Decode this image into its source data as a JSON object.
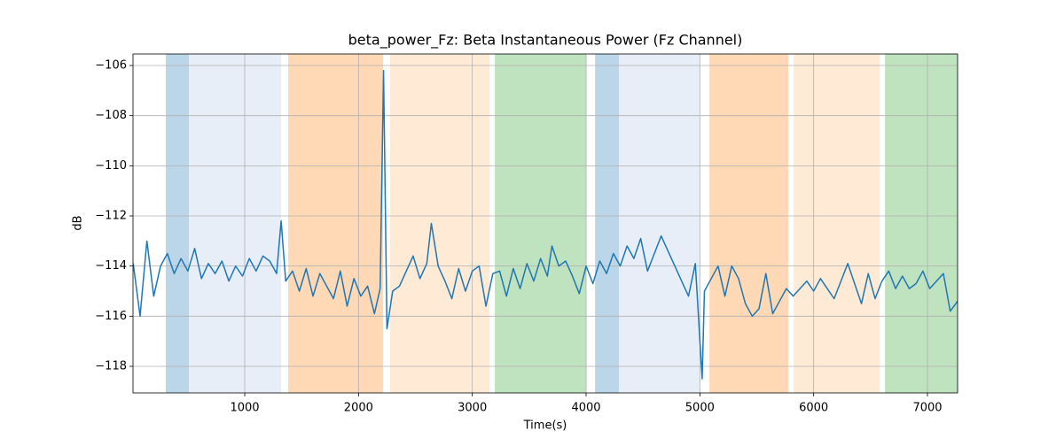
{
  "chart_data": {
    "type": "line",
    "title": "beta_power_Fz: Beta Instantaneous Power (Fz Channel)",
    "xlabel": "Time(s)",
    "ylabel": "dB",
    "color": "#1f77b4",
    "grid": true,
    "xlim": [
      18,
      7265
    ],
    "ylim": [
      -119.06,
      -105.54
    ],
    "xticks": [
      1000,
      2000,
      3000,
      4000,
      5000,
      6000,
      7000
    ],
    "yticks": [
      {
        "value": -118,
        "label": "−118"
      },
      {
        "value": -116,
        "label": "−116"
      },
      {
        "value": -114,
        "label": "−114"
      },
      {
        "value": -112,
        "label": "−112"
      },
      {
        "value": -110,
        "label": "−110"
      },
      {
        "value": -108,
        "label": "−108"
      },
      {
        "value": -106,
        "label": "−106"
      }
    ],
    "span_alpha": 0.3,
    "spans": [
      {
        "start": 306,
        "end": 509,
        "color": "#1f77b4"
      },
      {
        "start": 509,
        "end": 1320,
        "color": "#aec7e8"
      },
      {
        "start": 1382,
        "end": 2216,
        "color": "#ff7f0e"
      },
      {
        "start": 2278,
        "end": 3151,
        "color": "#ffbb78"
      },
      {
        "start": 3198,
        "end": 4001,
        "color": "#2ca02c"
      },
      {
        "start": 4079,
        "end": 4289,
        "color": "#1f77b4"
      },
      {
        "start": 4289,
        "end": 4999,
        "color": "#aec7e8"
      },
      {
        "start": 5084,
        "end": 5778,
        "color": "#ff7f0e"
      },
      {
        "start": 5825,
        "end": 6581,
        "color": "#ffbb78"
      },
      {
        "start": 6627,
        "end": 7265,
        "color": "#2ca02c"
      }
    ],
    "x": [
      20,
      80,
      140,
      200,
      260,
      320,
      380,
      440,
      500,
      560,
      620,
      680,
      740,
      800,
      860,
      920,
      980,
      1040,
      1100,
      1160,
      1220,
      1280,
      1320,
      1360,
      1420,
      1480,
      1540,
      1600,
      1660,
      1720,
      1780,
      1840,
      1900,
      1960,
      2020,
      2080,
      2140,
      2190,
      2220,
      2250,
      2300,
      2360,
      2420,
      2480,
      2540,
      2600,
      2640,
      2700,
      2760,
      2820,
      2880,
      2940,
      3000,
      3060,
      3120,
      3180,
      3240,
      3300,
      3360,
      3420,
      3480,
      3540,
      3600,
      3660,
      3700,
      3760,
      3820,
      3880,
      3940,
      4000,
      4060,
      4120,
      4180,
      4240,
      4300,
      4360,
      4420,
      4480,
      4540,
      4600,
      4660,
      4720,
      4780,
      4840,
      4900,
      4960,
      5020,
      5040,
      5100,
      5160,
      5220,
      5280,
      5340,
      5400,
      5460,
      5520,
      5580,
      5640,
      5700,
      5760,
      5820,
      5880,
      5940,
      6000,
      6060,
      6120,
      6180,
      6240,
      6300,
      6360,
      6420,
      6480,
      6540,
      6600,
      6660,
      6720,
      6780,
      6840,
      6900,
      6960,
      7020,
      7080,
      7140,
      7200,
      7265
    ],
    "values": [
      -113.9,
      -116.0,
      -113.0,
      -115.2,
      -114.0,
      -113.5,
      -114.3,
      -113.7,
      -114.2,
      -113.3,
      -114.5,
      -113.9,
      -114.3,
      -113.8,
      -114.6,
      -114.0,
      -114.4,
      -113.7,
      -114.2,
      -113.6,
      -113.8,
      -114.3,
      -112.2,
      -114.6,
      -114.2,
      -115.0,
      -114.1,
      -115.2,
      -114.3,
      -114.8,
      -115.3,
      -114.2,
      -115.6,
      -114.5,
      -115.2,
      -114.8,
      -115.9,
      -114.9,
      -106.2,
      -116.5,
      -115.0,
      -114.8,
      -114.2,
      -113.6,
      -114.5,
      -113.9,
      -112.3,
      -114.0,
      -114.6,
      -115.3,
      -114.1,
      -115.0,
      -114.2,
      -114.0,
      -115.6,
      -114.3,
      -114.2,
      -115.2,
      -114.1,
      -114.9,
      -113.9,
      -114.6,
      -113.7,
      -114.4,
      -113.2,
      -114.0,
      -113.8,
      -114.4,
      -115.1,
      -114.0,
      -114.7,
      -113.8,
      -114.3,
      -113.5,
      -114.0,
      -113.2,
      -113.7,
      -112.9,
      -114.2,
      -113.5,
      -112.8,
      -113.4,
      -114.0,
      -114.6,
      -115.2,
      -113.9,
      -118.5,
      -115.0,
      -114.5,
      -114.0,
      -115.2,
      -114.0,
      -114.5,
      -115.5,
      -116.0,
      -115.7,
      -114.3,
      -115.9,
      -115.4,
      -114.9,
      -115.2,
      -114.9,
      -114.6,
      -115.0,
      -114.5,
      -114.9,
      -115.3,
      -114.6,
      -113.9,
      -114.7,
      -115.5,
      -114.3,
      -115.3,
      -114.6,
      -114.2,
      -114.9,
      -114.4,
      -114.9,
      -114.7,
      -114.2,
      -114.9,
      -114.6,
      -114.3,
      -115.8,
      -115.4
    ]
  }
}
